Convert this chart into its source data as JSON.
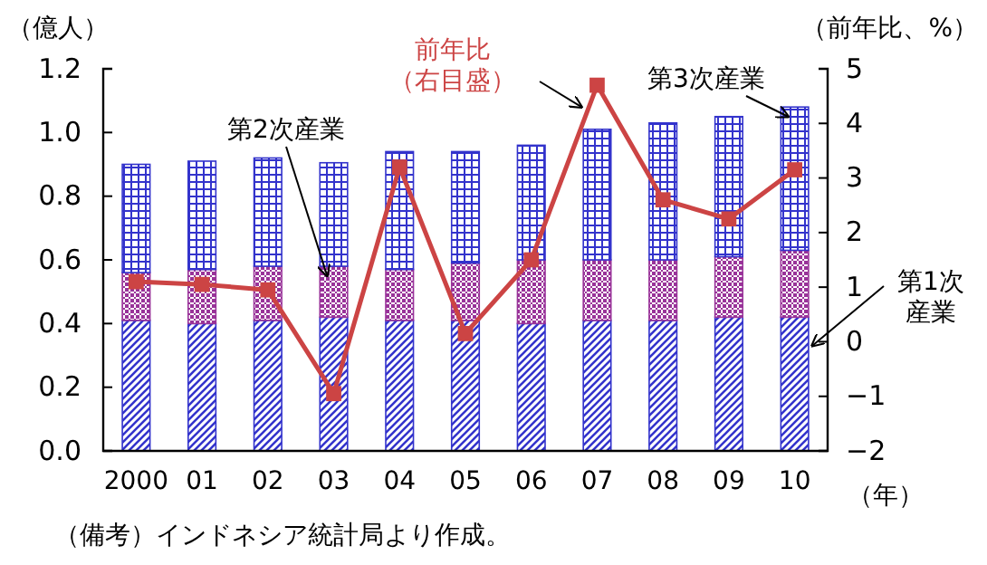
{
  "chart_data": {
    "type": "bar",
    "stacked": true,
    "categories": [
      "2000",
      "01",
      "02",
      "03",
      "04",
      "05",
      "06",
      "07",
      "08",
      "09",
      "10"
    ],
    "series": [
      {
        "name": "第1次産業",
        "color": "#3333cc",
        "values": [
          0.41,
          0.4,
          0.41,
          0.42,
          0.41,
          0.41,
          0.4,
          0.41,
          0.41,
          0.42,
          0.42
        ]
      },
      {
        "name": "第2次産業",
        "color": "#993399",
        "values": [
          0.15,
          0.17,
          0.17,
          0.16,
          0.16,
          0.18,
          0.2,
          0.19,
          0.19,
          0.19,
          0.21
        ]
      },
      {
        "name": "第3次産業",
        "color": "#3333cc",
        "values": [
          0.34,
          0.34,
          0.34,
          0.325,
          0.37,
          0.35,
          0.36,
          0.41,
          0.43,
          0.44,
          0.45
        ]
      },
      {
        "name": "前年比（右目盛）",
        "type": "line",
        "axis": "y2",
        "color": "#cc4444",
        "values": [
          1.1,
          1.05,
          0.95,
          -0.95,
          3.2,
          0.15,
          1.5,
          4.7,
          2.6,
          2.25,
          3.15
        ]
      }
    ],
    "ylim": [
      0,
      1.2
    ],
    "yticks": [
      {
        "value": 0,
        "label": "0.0"
      },
      0.2,
      0.4,
      0.6,
      0.8,
      {
        "value": 1,
        "label": "1.0"
      },
      1.2
    ],
    "y2lim": [
      -2,
      5
    ],
    "y2ticks": [
      {
        "value": -2,
        "label": "−2"
      },
      {
        "value": -1,
        "label": "−1"
      },
      0,
      1,
      2,
      3,
      4,
      5
    ],
    "ylabel": "（億人）",
    "y2label": "（前年比、%）",
    "xlabel": "（年）",
    "annotations": [
      "（備考）インドネシア統計局より作成。"
    ],
    "marker": "square",
    "grid": false
  }
}
